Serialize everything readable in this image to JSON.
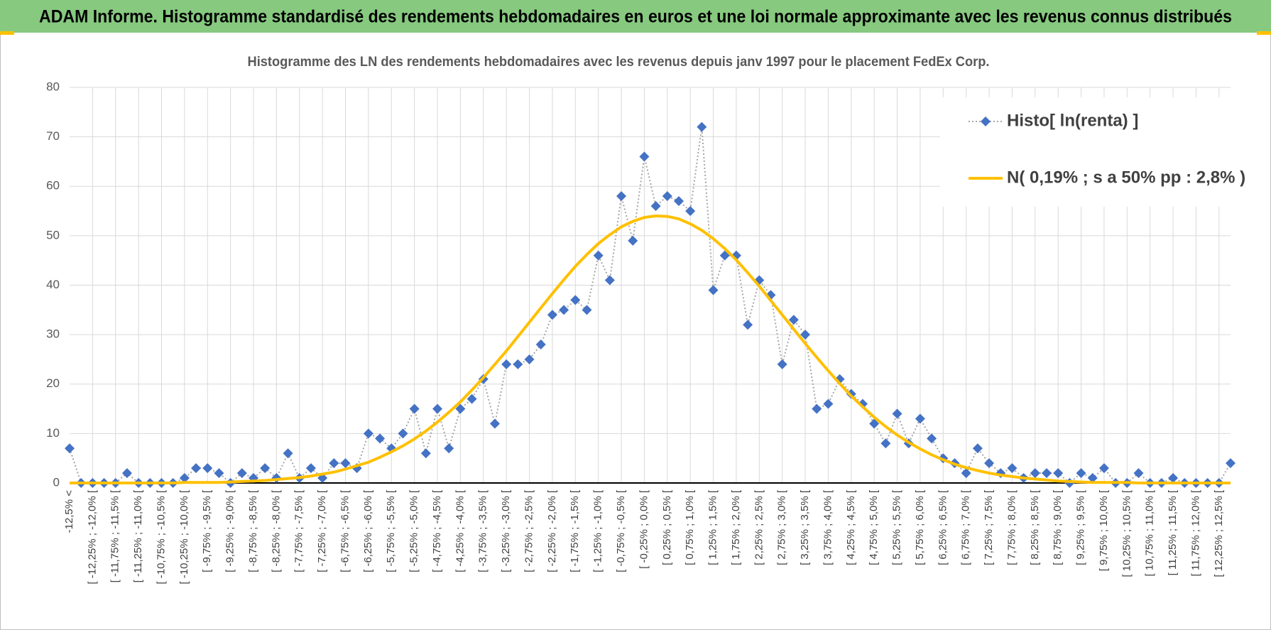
{
  "chart_data": {
    "type": "line",
    "title": "ADAM Informe. Histogramme standardisé des rendements hebdomadaires en euros et une loi normale approximante avec les revenus connus distribués",
    "subtitle": "Histogramme des LN des rendements hebdomadaires avec les revenus depuis janv 1997 pour le placement FedEx Corp.",
    "categories": [
      "-12,5% <",
      null,
      "[ -12,25% ; -12,0% [",
      null,
      "[ -11,75% ; -11,5% [",
      null,
      "[ -11,25% ; -11,0% [",
      null,
      "[ -10,75% ; -10,5% [",
      null,
      "[ -10,25% ; -10,0% [",
      null,
      "[ -9,75% ; -9,5% [",
      null,
      "[ -9,25% ; -9,0% [",
      null,
      "[ -8,75% ; -8,5% [",
      null,
      "[ -8,25% ; -8,0% [",
      null,
      "[ -7,75% ; -7,5% [",
      null,
      "[ -7,25% ; -7,0% [",
      null,
      "[ -6,75% ; -6,5% [",
      null,
      "[ -6,25% ; -6,0% [",
      null,
      "[ -5,75% ; -5,5% [",
      null,
      "[ -5,25% ; -5,0% [",
      null,
      "[ -4,75% ; -4,5% [",
      null,
      "[ -4,25% ; -4,0% [",
      null,
      "[ -3,75% ; -3,5% [",
      null,
      "[ -3,25% ; -3,0% [",
      null,
      "[ -2,75% ; -2,5% [",
      null,
      "[ -2,25% ; -2,0% [",
      null,
      "[ -1,75% ; -1,5% [",
      null,
      "[ -1,25% ; -1,0% [",
      null,
      "[ -0,75% ; -0,5% [",
      null,
      "[ -0,25% ; 0,0% [",
      null,
      "[ 0,25% ; 0,5% [",
      null,
      "[ 0,75% ; 1,0% [",
      null,
      "[ 1,25% ; 1,5% [",
      null,
      "[ 1,75% ; 2,0% [",
      null,
      "[ 2,25% ; 2,5% [",
      null,
      "[ 2,75% ; 3,0% [",
      null,
      "[ 3,25% ; 3,5% [",
      null,
      "[ 3,75% ; 4,0% [",
      null,
      "[ 4,25% ; 4,5% [",
      null,
      "[ 4,75% ; 5,0% [",
      null,
      "[ 5,25% ; 5,5% [",
      null,
      "[ 5,75% ; 6,0% [",
      null,
      "[ 6,25% ; 6,5% [",
      null,
      "[ 6,75% ; 7,0% [",
      null,
      "[ 7,25% ; 7,5% [",
      null,
      "[ 7,75% ; 8,0% [",
      null,
      "[ 8,25% ; 8,5% [",
      null,
      "[ 8,75% ; 9,0% [",
      null,
      "[ 9,25% ; 9,5% [",
      null,
      "[ 9,75% ; 10,0% [",
      null,
      "[ 10,25% ; 10,5% [",
      null,
      "[ 10,75% ; 11,0% [",
      null,
      "[ 11,25% ; 11,5% [",
      null,
      "[ 11,75% ; 12,0% [",
      null,
      "[ 12,25% ; 12,5% [",
      null
    ],
    "series": [
      {
        "name": "Histo[ ln(renta) ]",
        "color": "#4472c4",
        "line_color": "#a6a6a6",
        "marker": "diamond",
        "values": [
          7,
          0,
          0,
          0,
          0,
          2,
          0,
          0,
          0,
          0,
          1,
          3,
          3,
          2,
          0,
          2,
          1,
          3,
          1,
          6,
          1,
          3,
          1,
          4,
          4,
          3,
          10,
          9,
          7,
          10,
          15,
          6,
          15,
          7,
          15,
          17,
          21,
          12,
          24,
          24,
          25,
          28,
          34,
          35,
          37,
          35,
          46,
          41,
          58,
          49,
          66,
          56,
          58,
          57,
          55,
          72,
          39,
          46,
          46,
          32,
          41,
          38,
          24,
          33,
          30,
          15,
          16,
          21,
          18,
          16,
          12,
          8,
          14,
          8,
          13,
          9,
          5,
          4,
          2,
          7,
          4,
          2,
          3,
          1,
          2,
          2,
          2,
          0,
          2,
          1,
          3,
          0,
          0,
          2,
          0,
          0,
          1,
          0,
          0,
          0,
          0,
          4
        ]
      },
      {
        "name": "N( 0,19% ; s a 50% pp : 2,8% )",
        "color": "#ffc000",
        "values": [
          0,
          0,
          0,
          0,
          0,
          0,
          0,
          0,
          0,
          0,
          0.1,
          0.1,
          0.1,
          0.1,
          0.2,
          0.3,
          0.4,
          0.5,
          0.7,
          0.9,
          1.1,
          1.4,
          1.8,
          2.2,
          2.8,
          3.5,
          4.2,
          5.2,
          6.3,
          7.5,
          8.9,
          10.5,
          12.3,
          14.3,
          16.4,
          18.8,
          21.3,
          24.0,
          26.7,
          29.6,
          32.5,
          35.4,
          38.3,
          41.1,
          43.8,
          46.2,
          48.4,
          50.2,
          51.8,
          52.9,
          53.7,
          54.0,
          53.9,
          53.4,
          52.4,
          51.1,
          49.4,
          47.4,
          45.1,
          42.5,
          39.8,
          36.9,
          34.0,
          31.1,
          28.2,
          25.4,
          22.7,
          20.1,
          17.6,
          15.4,
          13.3,
          11.4,
          9.7,
          8.2,
          6.9,
          5.7,
          4.7,
          3.8,
          3.1,
          2.5,
          2.0,
          1.6,
          1.3,
          1.0,
          0.8,
          0.6,
          0.4,
          0.3,
          0.2,
          0.1,
          0.1,
          0.1,
          0.1,
          0,
          0,
          0,
          0,
          0,
          0,
          0,
          0,
          0
        ]
      }
    ],
    "ylim": [
      0,
      80
    ],
    "yticks": [
      0,
      10,
      20,
      30,
      40,
      50,
      60,
      70,
      80
    ],
    "grid": true,
    "legend": "upper right"
  }
}
